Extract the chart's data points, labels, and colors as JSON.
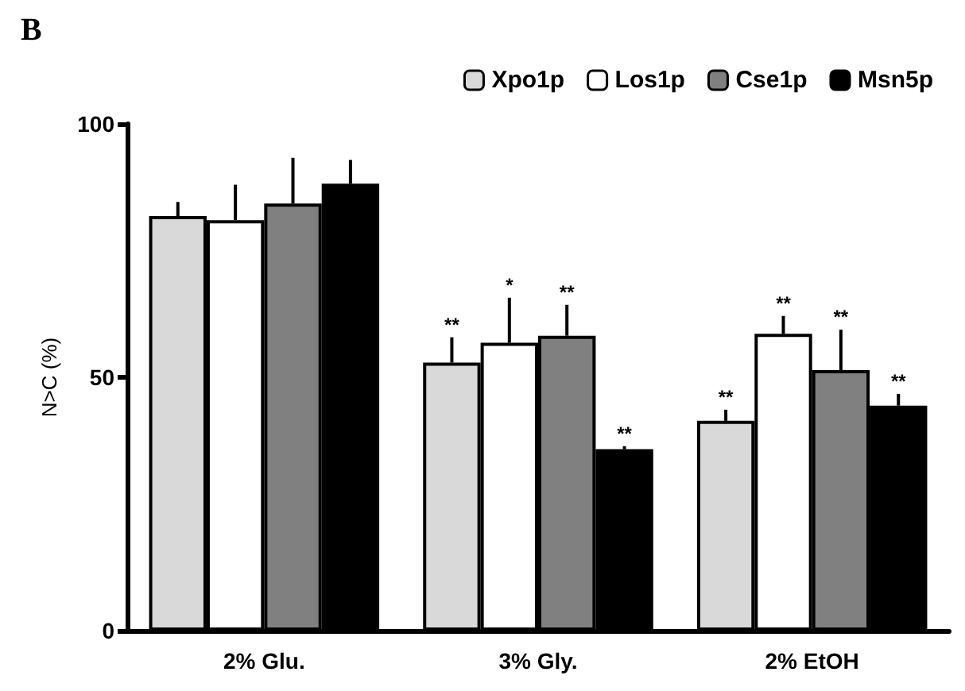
{
  "chart_data": {
    "type": "bar",
    "title": "B",
    "ylabel": "N>C (%)",
    "categories": [
      "2% Glu.",
      "3% Gly.",
      "2% EtOH"
    ],
    "series": [
      {
        "name": "Xpo1p",
        "color": "#d9d9d9",
        "values": [
          81.8,
          52.9,
          41.4
        ],
        "errors": [
          2.8,
          5,
          2.2
        ],
        "value_labels": [
          null,
          "**",
          "**"
        ]
      },
      {
        "name": "Los1p",
        "color": "#ffffff",
        "values": [
          81,
          56.8,
          58.6
        ],
        "errors": [
          7,
          8.9,
          3.5
        ],
        "value_labels": [
          null,
          "*",
          "**"
        ]
      },
      {
        "name": "Cse1p",
        "color": "#808080",
        "values": [
          84.3,
          58.2,
          51.4
        ],
        "errors": [
          9,
          6.1,
          8
        ],
        "value_labels": [
          null,
          "**",
          "**"
        ]
      },
      {
        "name": "Msn5p",
        "color": "#000000",
        "values": [
          88.2,
          35.8,
          44.4
        ],
        "errors": [
          4.7,
          0.6,
          2.3
        ],
        "value_labels": [
          null,
          "**",
          "**"
        ]
      }
    ],
    "ylim": [
      0,
      100
    ],
    "yticks": [
      0,
      50,
      100
    ],
    "legend": "top right",
    "grid": false
  }
}
